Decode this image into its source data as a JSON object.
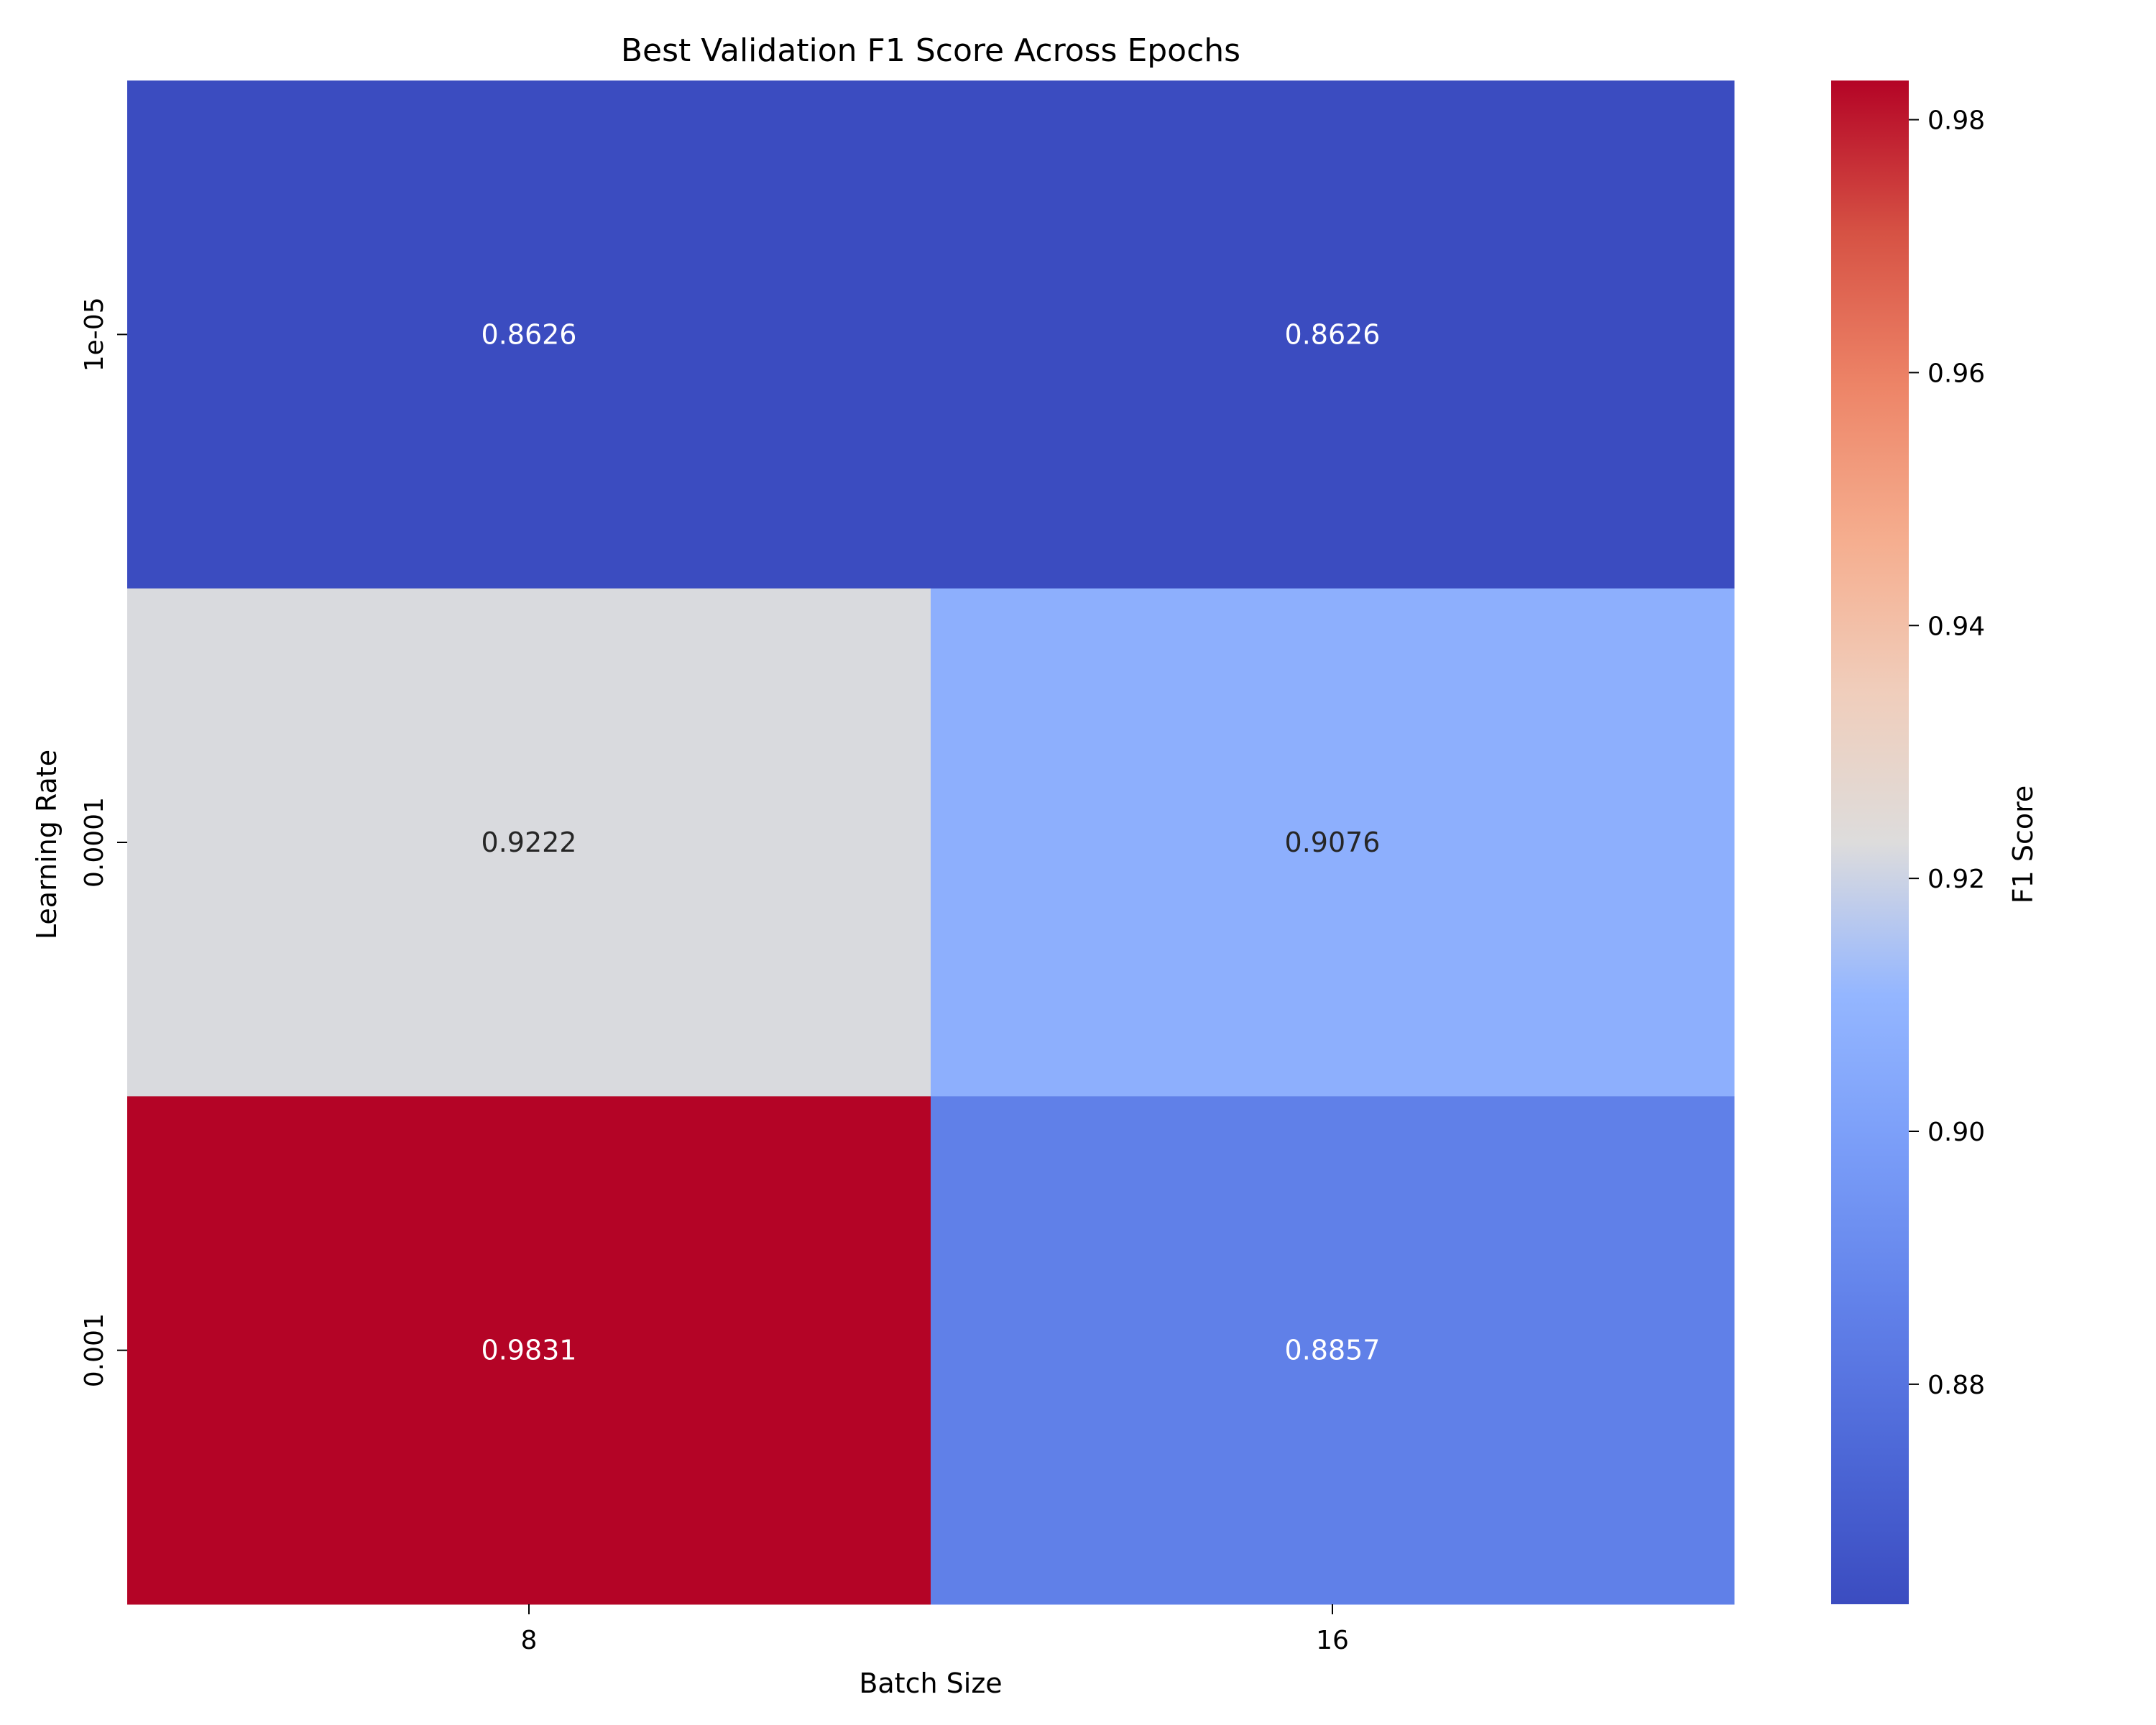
{
  "chart_data": {
    "type": "heatmap",
    "title": "Best Validation F1 Score Across Epochs",
    "xlabel": "Batch Size",
    "ylabel": "Learning Rate",
    "x_categories": [
      "8",
      "16"
    ],
    "y_categories": [
      "1e-05",
      "0.0001",
      "0.001"
    ],
    "values": [
      [
        0.8626,
        0.8626
      ],
      [
        0.9222,
        0.9076
      ],
      [
        0.9831,
        0.8857
      ]
    ],
    "value_labels": [
      [
        "0.8626",
        "0.8626"
      ],
      [
        "0.9222",
        "0.9076"
      ],
      [
        "0.9831",
        "0.8857"
      ]
    ],
    "colormap": "coolwarm",
    "colorbar": {
      "label": "F1 Score",
      "range": [
        0.8626,
        0.9831
      ],
      "ticks": [
        0.88,
        0.9,
        0.92,
        0.94,
        0.96,
        0.98
      ],
      "tick_labels": [
        "0.88",
        "0.90",
        "0.92",
        "0.94",
        "0.96",
        "0.98"
      ]
    },
    "colors": {
      "low": "#3b4cc0",
      "mid": "#dddcdc",
      "high": "#b40426"
    }
  }
}
